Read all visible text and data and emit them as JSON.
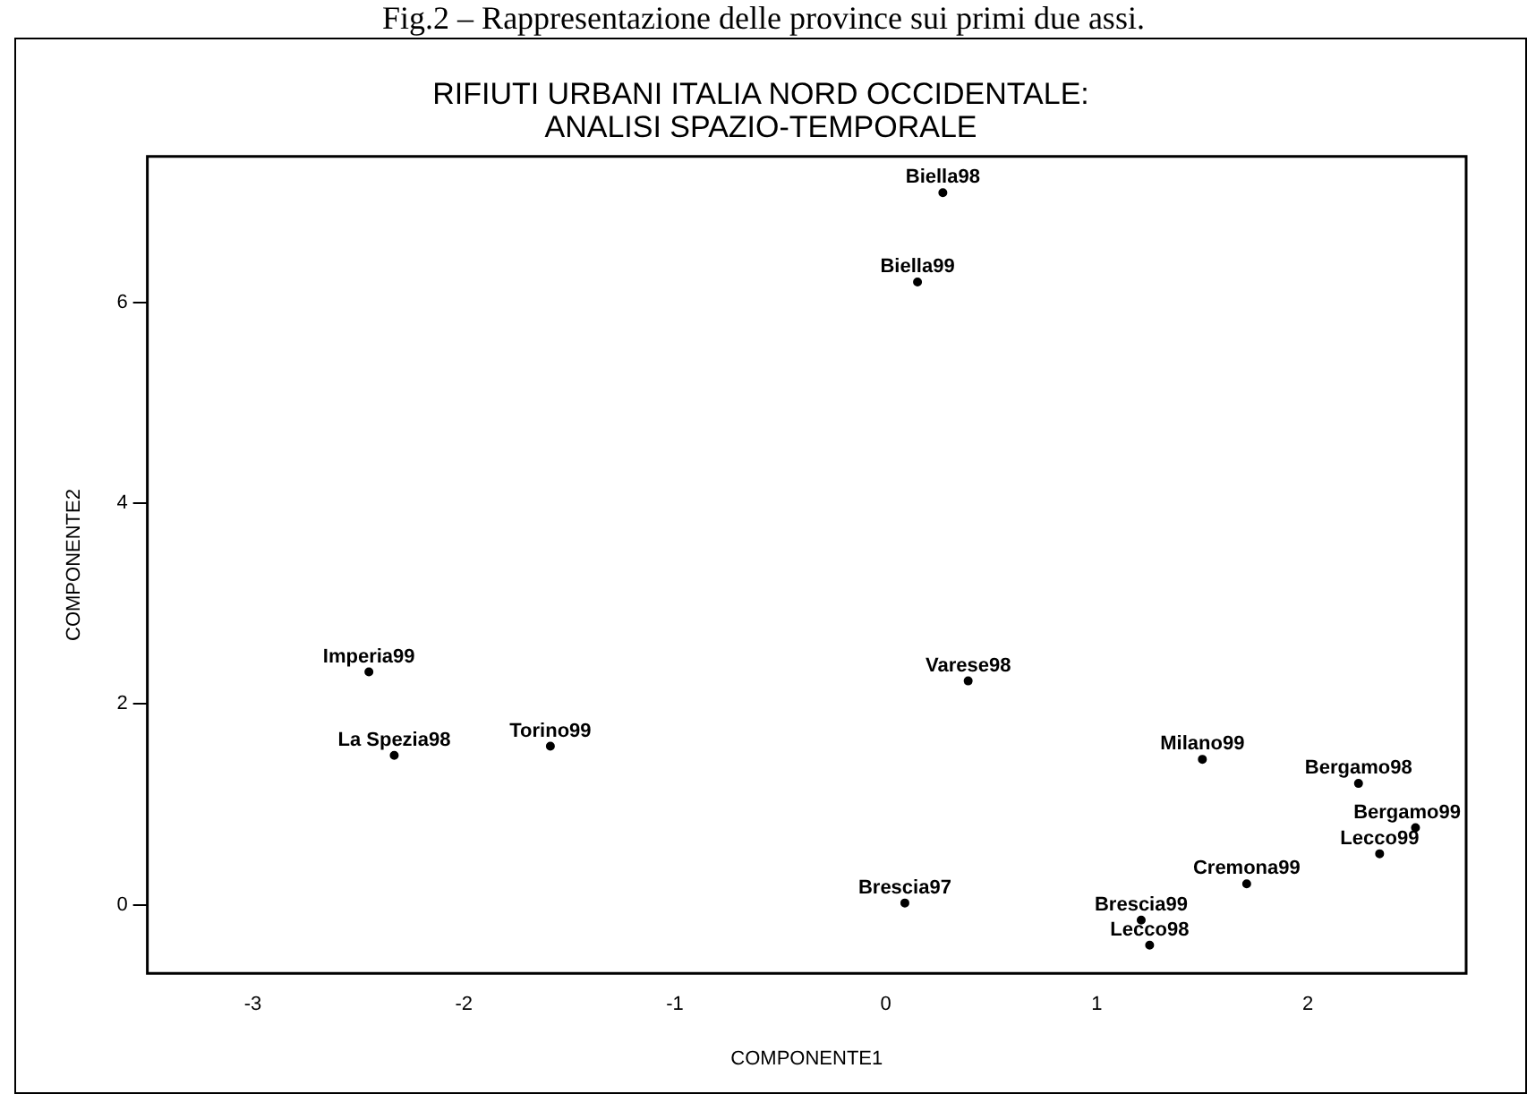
{
  "chart_data": {
    "type": "scatter",
    "title": "RIFIUTI URBANI ITALIA NORD OCCIDENTALE:\nANALISI SPAZIO-TEMPORALE",
    "xlabel": "COMPONENTE1",
    "ylabel": "COMPONENTE2",
    "annotations": [
      "Fig.2 – Rappresentazione delle province sui primi due assi."
    ],
    "x": [
      0.27,
      0.15,
      0.39,
      -2.45,
      -1.59,
      -2.33,
      1.5,
      2.24,
      2.51,
      2.34,
      1.71,
      1.25,
      1.21,
      0.09
    ],
    "values": [
      7.09,
      6.2,
      2.23,
      2.32,
      1.58,
      1.49,
      1.45,
      1.21,
      0.77,
      0.51,
      0.21,
      -0.4,
      -0.15,
      0.02
    ],
    "value_labels": [
      "Biella98",
      "Biella99",
      "Varese98",
      "Imperia99",
      "Torino99",
      "La Spezia98",
      "Milano99",
      "Bergamo98",
      "Bergamo99",
      "Lecco99",
      "Cremona99",
      "Lecco98",
      "Brescia99",
      "Brescia97"
    ],
    "color": "#000000",
    "marker": "circle",
    "grid": false,
    "legend": false,
    "xlim": [
      -3.5,
      2.75
    ],
    "xticks": [
      -3,
      -2,
      -1,
      0,
      1,
      2
    ],
    "ylim": [
      -0.68,
      7.45
    ],
    "yticks": [
      0,
      2,
      4,
      6
    ]
  }
}
